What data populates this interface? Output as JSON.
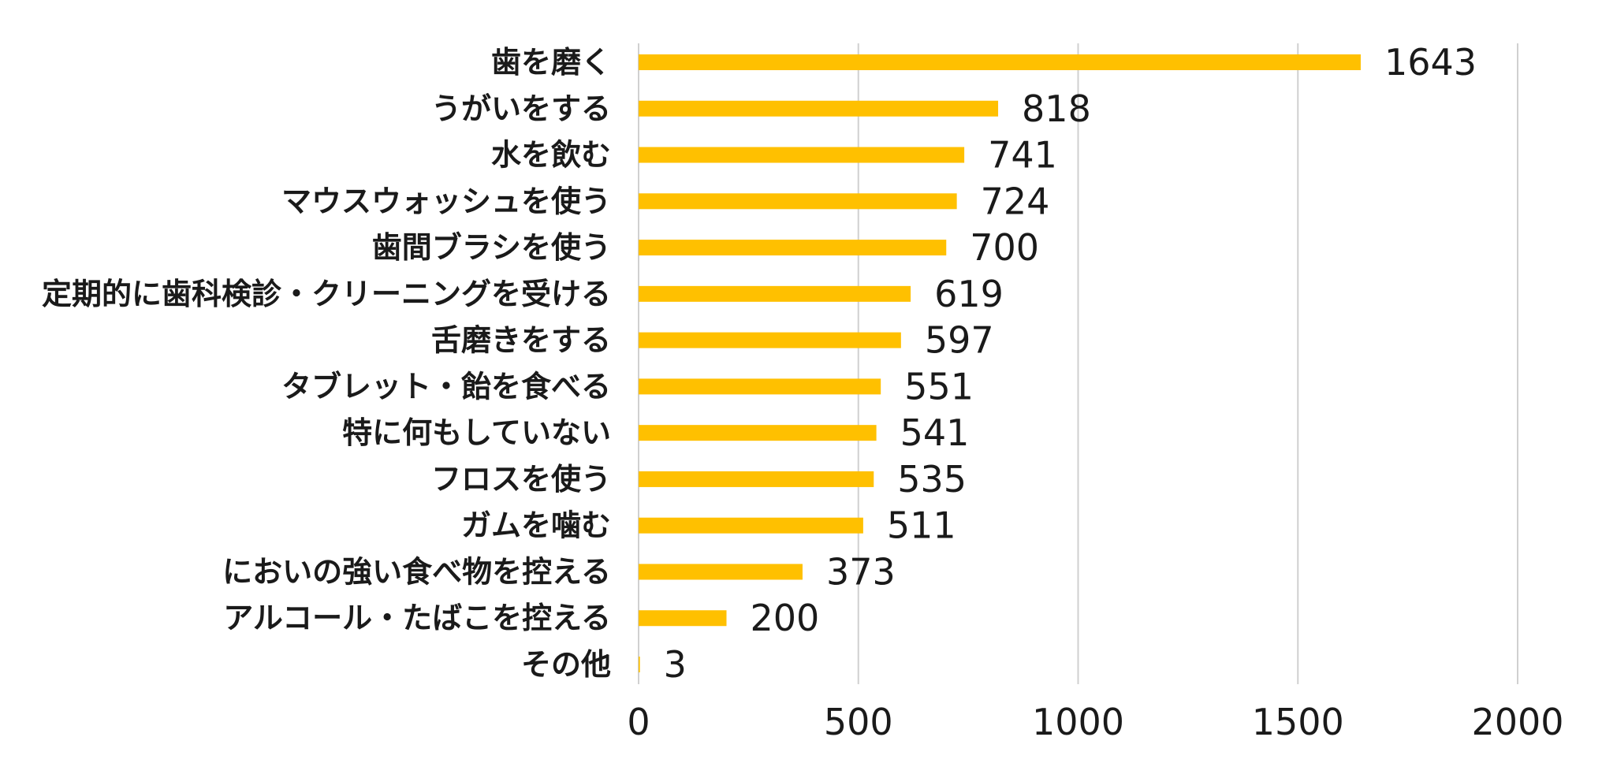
{
  "chart_data": {
    "type": "bar",
    "orientation": "horizontal",
    "title": "",
    "xlabel": "",
    "ylabel": "",
    "xlim": [
      0,
      2000
    ],
    "x_ticks": [
      0,
      500,
      1000,
      1500,
      2000
    ],
    "grid": true,
    "legend": "none",
    "bar_color": "#FFC000",
    "categories": [
      "歯を磨く",
      "うがいをする",
      "水を飲む",
      "マウスウォッシュを使う",
      "歯間ブラシを使う",
      "定期的に歯科検診・クリーニングを受ける",
      "舌磨きをする",
      "タブレット・飴を食べる",
      "特に何もしていない",
      "フロスを使う",
      "ガムを噛む",
      "においの強い食べ物を控える",
      "アルコール・たばこを控える",
      "その他"
    ],
    "values": [
      1643,
      818,
      741,
      724,
      700,
      619,
      597,
      551,
      541,
      535,
      511,
      373,
      200,
      3
    ]
  }
}
